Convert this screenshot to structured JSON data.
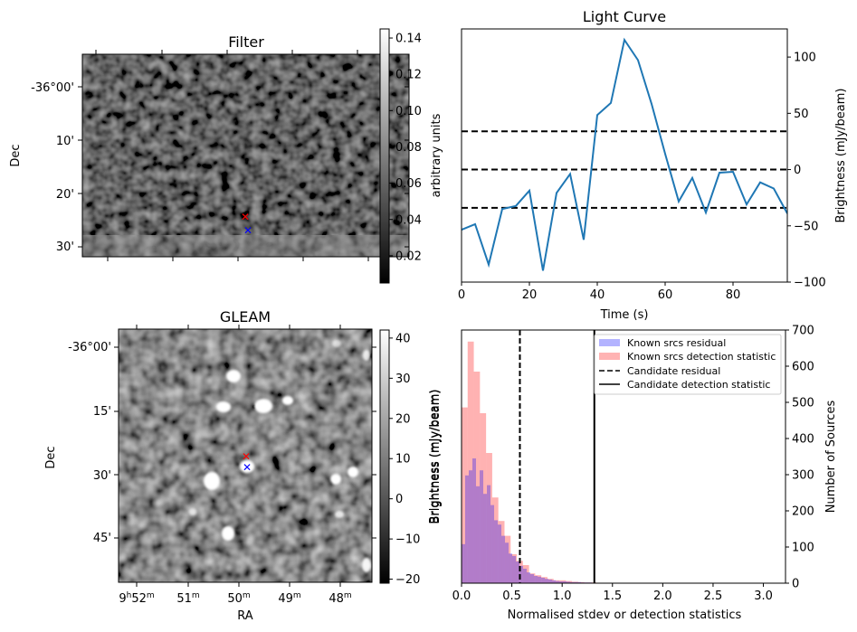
{
  "figure": {
    "panels": [
      "Filter",
      "Light Curve",
      "GLEAM",
      "Histogram"
    ]
  },
  "chart_data": [
    {
      "type": "heatmap",
      "panel": "filter",
      "title": "Filter",
      "xlabel": "",
      "ylabel": "Dec",
      "yticks": [
        "-36°00'",
        "10'",
        "20'",
        "30'"
      ],
      "colorbar": {
        "label": "arbitrary units",
        "ticks": [
          "0.02",
          "0.04",
          "0.06",
          "0.08",
          "0.10",
          "0.12",
          "0.14"
        ],
        "range": [
          0.005,
          0.145
        ],
        "colormap": "gray"
      },
      "markers": [
        {
          "name": "candidate-position",
          "symbol": "x",
          "color": "#ff0000"
        },
        {
          "name": "source-position",
          "symbol": "x",
          "color": "#0000ff"
        }
      ]
    },
    {
      "type": "line",
      "panel": "light-curve",
      "title": "Light Curve",
      "xlabel": "Time (s)",
      "ylabel": "Brightness (mJy/beam)",
      "xlim": [
        0,
        96
      ],
      "ylim": [
        -100,
        125
      ],
      "xticks": [
        "0",
        "20",
        "40",
        "60",
        "80"
      ],
      "yticks": [
        "−100",
        "−50",
        "0",
        "50",
        "100"
      ],
      "ytick_values": [
        -100,
        -50,
        0,
        50,
        100
      ],
      "xtick_values": [
        0,
        20,
        40,
        60,
        80
      ],
      "line_color": "#1f77b4",
      "x": [
        0,
        4,
        8,
        12,
        16,
        20,
        24,
        28,
        32,
        36,
        40,
        44,
        48,
        52,
        56,
        60,
        64,
        68,
        72,
        76,
        80,
        84,
        88,
        92,
        96
      ],
      "y": [
        -53.5,
        -48.5,
        -84.4,
        -35,
        -32.3,
        -18.7,
        -89.8,
        -20.8,
        -3.9,
        -62.4,
        48.5,
        59.2,
        115.3,
        97.3,
        58.4,
        14.0,
        -28.3,
        -7.4,
        -38.2,
        -2.8,
        -2.0,
        -31.0,
        -11.4,
        -16.8,
        -39.0
      ],
      "hlines": [
        {
          "y": 34,
          "style": "dashed",
          "color": "#000000"
        },
        {
          "y": 0,
          "style": "dashed",
          "color": "#000000"
        },
        {
          "y": -34,
          "style": "dashed",
          "color": "#000000"
        }
      ]
    },
    {
      "type": "heatmap",
      "panel": "gleam",
      "title": "GLEAM",
      "xlabel": "RA",
      "ylabel": "Dec",
      "xticks": [
        "9h52m",
        "51m",
        "50m",
        "49m",
        "48m"
      ],
      "xtick_parts": [
        {
          "pre": "9",
          "sup1": "h",
          "mid": "52",
          "sup2": "m"
        },
        {
          "pre": "",
          "sup1": "",
          "mid": "51",
          "sup2": "m"
        },
        {
          "pre": "",
          "sup1": "",
          "mid": "50",
          "sup2": "m"
        },
        {
          "pre": "",
          "sup1": "",
          "mid": "49",
          "sup2": "m"
        },
        {
          "pre": "",
          "sup1": "",
          "mid": "48",
          "sup2": "m"
        }
      ],
      "yticks": [
        "-36°00'",
        "15'",
        "30'",
        "45'"
      ],
      "colorbar": {
        "label": "Brightness (mJy/beam)",
        "ticks": [
          "−20",
          "−10",
          "0",
          "10",
          "20",
          "30",
          "40"
        ],
        "tick_values": [
          -20,
          -10,
          0,
          10,
          20,
          30,
          40
        ],
        "range": [
          -21,
          42
        ],
        "colormap": "gray"
      },
      "markers": [
        {
          "name": "candidate-position",
          "symbol": "x",
          "color": "#ff0000"
        },
        {
          "name": "source-position",
          "symbol": "x",
          "color": "#0000ff"
        }
      ]
    },
    {
      "type": "bar",
      "panel": "histogram",
      "title": "",
      "xlabel": "Normalised stdev or detection statistics",
      "ylabel_left": "Brightness (mJy/beam)",
      "ylabel_right": "Number of Sources",
      "xlim": [
        0,
        3.22
      ],
      "ylim": [
        0,
        700
      ],
      "xticks": [
        "0.0",
        "0.5",
        "1.0",
        "1.5",
        "2.0",
        "2.5",
        "3.0"
      ],
      "xtick_values": [
        0,
        0.5,
        1.0,
        1.5,
        2.0,
        2.5,
        3.0
      ],
      "yticks": [
        "0",
        "100",
        "200",
        "300",
        "400",
        "500",
        "600",
        "700"
      ],
      "ytick_values": [
        0,
        100,
        200,
        300,
        400,
        500,
        600,
        700
      ],
      "legend_position": "top-right",
      "series": [
        {
          "name": "Known srcs residual",
          "color": "#0000ff",
          "alpha": 0.3,
          "bin_start": 0.0,
          "bin_width": 0.036,
          "values": [
            108,
            298,
            312,
            345,
            268,
            312,
            247,
            271,
            216,
            174,
            162,
            131,
            112,
            82,
            75,
            60,
            48,
            40,
            30,
            25,
            20,
            18,
            15,
            12,
            10,
            8,
            6,
            5,
            5,
            4,
            3,
            3,
            3,
            2,
            2,
            2,
            1,
            1,
            1,
            1,
            1,
            1,
            0,
            1,
            1,
            1,
            1,
            0,
            1,
            1,
            1,
            1,
            0,
            0,
            0,
            0,
            0,
            0,
            0,
            0,
            0,
            0,
            0,
            0,
            0,
            0,
            0,
            0,
            0,
            0,
            0,
            0,
            0,
            0,
            0,
            0,
            0,
            0,
            0,
            0,
            0,
            0,
            0,
            0,
            0,
            0
          ]
        },
        {
          "name": "Known srcs detection statistic",
          "color": "#ff0000",
          "alpha": 0.3,
          "bin_start": 0.0,
          "bin_width": 0.061,
          "values": [
            486,
            668,
            585,
            470,
            360,
            237,
            172,
            131,
            80,
            62,
            50,
            27,
            22,
            17,
            12,
            8,
            8,
            6,
            4,
            3,
            2,
            2,
            1,
            1,
            1,
            0,
            1,
            0,
            1,
            1,
            0,
            0,
            0,
            0,
            0,
            1,
            0,
            1,
            0,
            1,
            1,
            0,
            0,
            0,
            0,
            0,
            0,
            0,
            0,
            0
          ]
        }
      ],
      "vlines": [
        {
          "name": "Candidate residual",
          "x": 0.58,
          "style": "dashed",
          "color": "#000000"
        },
        {
          "name": "Candidate detection statistic",
          "x": 1.32,
          "style": "solid",
          "color": "#000000"
        }
      ],
      "legend": [
        {
          "label": "Known srcs residual",
          "kind": "patch",
          "color": "#b3b3ff"
        },
        {
          "label": "Known srcs detection statistic",
          "kind": "patch",
          "color": "#ffb3b3"
        },
        {
          "label": "Candidate residual",
          "kind": "dashed",
          "color": "#000000"
        },
        {
          "label": "Candidate detection statistic",
          "kind": "solid",
          "color": "#000000"
        }
      ]
    }
  ]
}
